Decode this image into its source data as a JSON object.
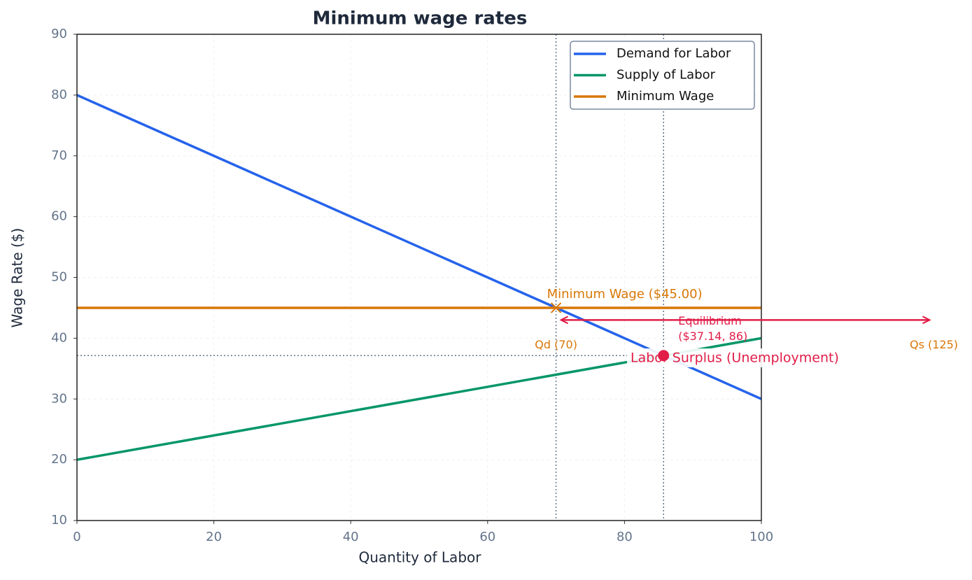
{
  "chart_data": {
    "type": "line",
    "title": "Minimum wage rates",
    "xlabel": "Quantity of Labor",
    "ylabel": "Wage Rate ($)",
    "xlim": [
      0,
      100
    ],
    "ylim": [
      10,
      90
    ],
    "xticks": [
      0,
      20,
      40,
      60,
      80,
      100
    ],
    "yticks": [
      10,
      20,
      30,
      40,
      50,
      60,
      70,
      80,
      90
    ],
    "grid": true,
    "legend": "upper right",
    "series": [
      {
        "name": "Demand for Labor",
        "color": "#2563eb",
        "x": [
          0,
          100
        ],
        "values": [
          80,
          30
        ]
      },
      {
        "name": "Supply of Labor",
        "color": "#059669",
        "x": [
          0,
          100
        ],
        "values": [
          20,
          40
        ]
      },
      {
        "name": "Minimum Wage",
        "color": "#d97706",
        "x": [
          0,
          100
        ],
        "values": [
          45,
          45
        ]
      }
    ],
    "equilibrium": {
      "x": 85.71,
      "y": 37.14,
      "color": "#e11d48"
    },
    "min_wage_point": {
      "x": 70,
      "y": 45,
      "color": "#d97706"
    },
    "vlines": [
      70,
      85.71
    ],
    "surplus_arrow": {
      "x": [
        70,
        125
      ],
      "y": 43,
      "color": "#e11d48"
    },
    "annotations": [
      "Minimum Wage ($45.00)",
      "Equilibrium",
      "($37.14, 86)",
      "Qd (70)",
      "Qs (125)",
      "Labor Surplus (Unemployment)"
    ]
  }
}
